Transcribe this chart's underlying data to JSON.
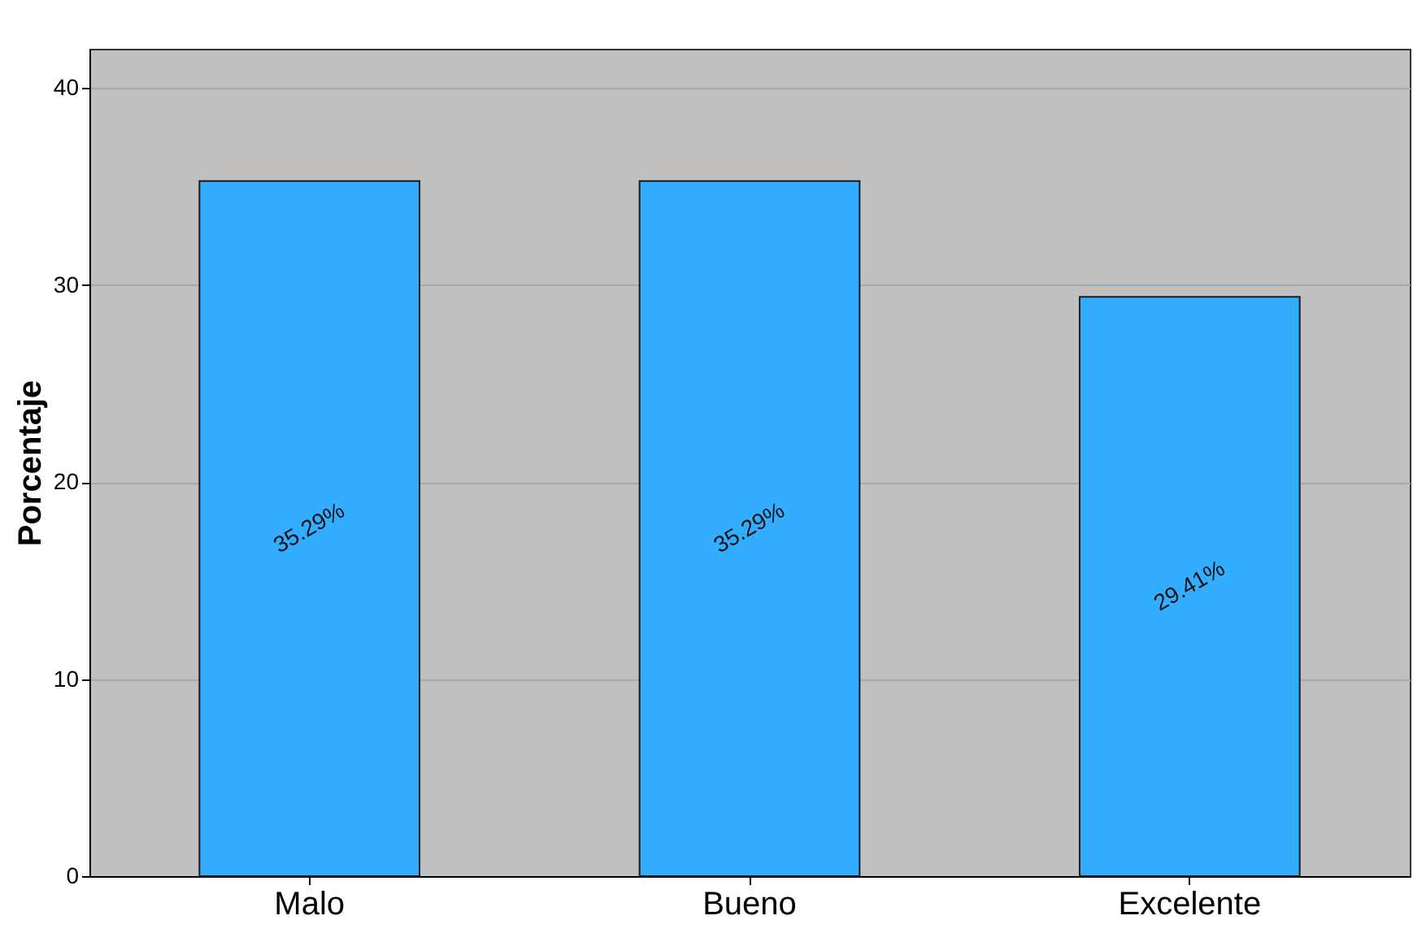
{
  "chart_data": {
    "type": "bar",
    "ylabel": "Porcentaje",
    "categories": [
      "Malo",
      "Bueno",
      "Excelente"
    ],
    "values": [
      35.29,
      35.29,
      29.41
    ],
    "value_labels": [
      "35.29%",
      "35.29%",
      "29.41%"
    ],
    "color": "#33adff",
    "ylim": [
      0,
      42
    ],
    "yticks": [
      0,
      10,
      20,
      30,
      40
    ],
    "grid": "y"
  }
}
